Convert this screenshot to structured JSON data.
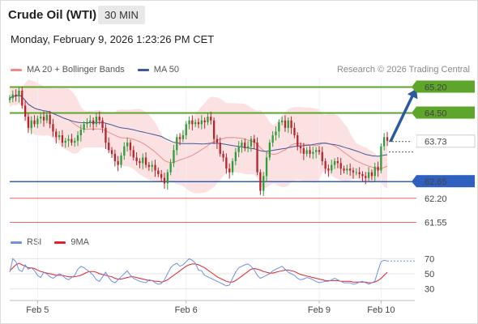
{
  "header": {
    "title": "Crude Oil (WTI)",
    "interval": "30 MIN",
    "datetime": "Monday, February 9, 2026 1:23:26 PM CET"
  },
  "legend": {
    "ma20_label": "MA 20 + Bollinger Bands",
    "ma50_label": "MA 50",
    "rsi_label": "RSI",
    "rsi_ma_label": "9MA",
    "copyright": "Research © 2026 Trading Central"
  },
  "colors": {
    "up": "#2e9e3c",
    "down": "#b3262e",
    "bollinger_fill": "#fadada",
    "ma20": "#ef8a8a",
    "ma50": "#3d5a9e",
    "resistance": "#5ea52b",
    "support": "#2f5fbf",
    "red_level": "#ee6666",
    "rsi": "#6f8fe0",
    "rsi_ma": "#e0202a",
    "arrow": "#2b5a9e"
  },
  "chart_data": {
    "type": "candlestick",
    "x_ticks": [
      "Feb 5",
      "Feb 6",
      "Feb 9",
      "Feb 10"
    ],
    "y_range": [
      61.3,
      65.45
    ],
    "levels": [
      {
        "value": 65.2,
        "label": "65.20",
        "kind": "resistance"
      },
      {
        "value": 64.5,
        "label": "64.50",
        "kind": "resistance"
      },
      {
        "value": 63.73,
        "label": "63.73",
        "kind": "last"
      },
      {
        "value": 62.65,
        "label": "62.65",
        "kind": "support"
      },
      {
        "value": 62.2,
        "label": "62.20",
        "kind": "red"
      },
      {
        "value": 61.55,
        "label": "61.55",
        "kind": "red"
      }
    ],
    "arrow": {
      "from": 63.73,
      "to": 65.2
    },
    "close": [
      64.9,
      65.0,
      64.95,
      65.1,
      64.7,
      64.4,
      64.1,
      64.3,
      64.2,
      64.35,
      64.4,
      64.3,
      64.45,
      64.2,
      64.0,
      63.85,
      63.9,
      63.7,
      63.75,
      63.8,
      63.7,
      63.75,
      63.9,
      64.05,
      64.2,
      64.25,
      64.3,
      64.2,
      64.4,
      64.3,
      64.1,
      63.7,
      63.5,
      63.4,
      63.2,
      63.1,
      63.35,
      63.6,
      63.7,
      63.5,
      63.3,
      63.2,
      63.15,
      63.3,
      63.1,
      63.05,
      63.1,
      62.95,
      62.85,
      62.75,
      62.6,
      62.9,
      63.15,
      63.5,
      63.85,
      63.8,
      63.9,
      64.2,
      64.3,
      64.2,
      64.25,
      64.2,
      64.3,
      64.25,
      64.4,
      64.3,
      63.8,
      63.7,
      63.4,
      63.3,
      63.0,
      62.9,
      63.2,
      63.45,
      63.6,
      63.7,
      63.55,
      63.6,
      63.8,
      63.7,
      62.9,
      62.4,
      62.8,
      63.3,
      63.7,
      63.9,
      64.0,
      64.25,
      64.3,
      64.1,
      64.3,
      64.1,
      63.9,
      63.6,
      63.55,
      63.4,
      63.5,
      63.4,
      63.45,
      63.5,
      63.45,
      63.2,
      63.0,
      62.95,
      63.1,
      63.2,
      63.15,
      63.0,
      62.95,
      63.0,
      62.95,
      62.9,
      62.9,
      62.85,
      62.8,
      62.75,
      62.9,
      62.8,
      63.05,
      62.95,
      63.6,
      63.85,
      63.75
    ]
  },
  "rsi_data": {
    "y_ticks": [
      "70",
      "50",
      "30"
    ],
    "y_range": [
      22,
      78
    ],
    "rsi": [
      52,
      70,
      66,
      55,
      53,
      62,
      56,
      58,
      54,
      48,
      45,
      52,
      50,
      46,
      44,
      47,
      50,
      48,
      44,
      42,
      45,
      48,
      56,
      60,
      58,
      55,
      52,
      48,
      42,
      40,
      46,
      52,
      45,
      40,
      38,
      42,
      46,
      50,
      54,
      48,
      44,
      42,
      40,
      39,
      38,
      42,
      41,
      38,
      36,
      37,
      42,
      50,
      58,
      62,
      64,
      60,
      62,
      66,
      70,
      68,
      64,
      55,
      54,
      48,
      46,
      44,
      42,
      40,
      38,
      36,
      34,
      35,
      44,
      52,
      58,
      60,
      62,
      63,
      60,
      55,
      48,
      44,
      46,
      48,
      50,
      54,
      56,
      58,
      60,
      56,
      52,
      50,
      48,
      44,
      42,
      43,
      45,
      44,
      42,
      40,
      38,
      39,
      40,
      40,
      42,
      44,
      42,
      40,
      38,
      38,
      38,
      36,
      37,
      39,
      40,
      38,
      36,
      38,
      40,
      54,
      66,
      68,
      67
    ],
    "rsi_ma": [
      54,
      58,
      62,
      64,
      62,
      60,
      58,
      58,
      57,
      55,
      53,
      52,
      51,
      50,
      49,
      48,
      48,
      48,
      47,
      46,
      46,
      46,
      47,
      48,
      50,
      52,
      53,
      53,
      52,
      50,
      49,
      48,
      47,
      46,
      44,
      43,
      43,
      44,
      45,
      46,
      46,
      45,
      44,
      43,
      42,
      41,
      41,
      40,
      40,
      39,
      40,
      42,
      45,
      48,
      51,
      54,
      57,
      60,
      62,
      63,
      63,
      62,
      60,
      58,
      55,
      52,
      49,
      46,
      44,
      42,
      40,
      39,
      39,
      41,
      44,
      47,
      50,
      53,
      56,
      57,
      56,
      55,
      53,
      52,
      51,
      51,
      52,
      53,
      54,
      55,
      55,
      54,
      53,
      51,
      49,
      48,
      47,
      46,
      45,
      44,
      43,
      42,
      41,
      41,
      41,
      41,
      41,
      40,
      40,
      40,
      40,
      39,
      39,
      39,
      39,
      39,
      38,
      38,
      39,
      41,
      44,
      48,
      52
    ]
  }
}
